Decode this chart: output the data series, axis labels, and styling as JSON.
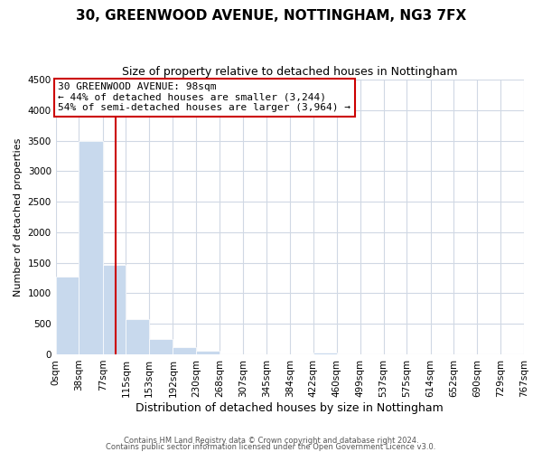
{
  "title": "30, GREENWOOD AVENUE, NOTTINGHAM, NG3 7FX",
  "subtitle": "Size of property relative to detached houses in Nottingham",
  "xlabel": "Distribution of detached houses by size in Nottingham",
  "ylabel": "Number of detached properties",
  "bar_color": "#c8d9ed",
  "bin_edges": [
    0,
    38,
    77,
    115,
    153,
    192,
    230,
    268,
    307,
    345,
    384,
    422,
    460,
    499,
    537,
    575,
    614,
    652,
    690,
    729,
    767
  ],
  "bin_labels": [
    "0sqm",
    "38sqm",
    "77sqm",
    "115sqm",
    "153sqm",
    "192sqm",
    "230sqm",
    "268sqm",
    "307sqm",
    "345sqm",
    "384sqm",
    "422sqm",
    "460sqm",
    "499sqm",
    "537sqm",
    "575sqm",
    "614sqm",
    "652sqm",
    "690sqm",
    "729sqm",
    "767sqm"
  ],
  "bar_heights": [
    1280,
    3500,
    1470,
    580,
    245,
    125,
    65,
    0,
    0,
    0,
    0,
    30,
    0,
    0,
    0,
    0,
    0,
    0,
    0,
    0
  ],
  "ylim": [
    0,
    4500
  ],
  "yticks": [
    0,
    500,
    1000,
    1500,
    2000,
    2500,
    3000,
    3500,
    4000,
    4500
  ],
  "vline_x": 98,
  "annotation_title": "30 GREENWOOD AVENUE: 98sqm",
  "annotation_line1": "← 44% of detached houses are smaller (3,244)",
  "annotation_line2": "54% of semi-detached houses are larger (3,964) →",
  "footer1": "Contains HM Land Registry data © Crown copyright and database right 2024.",
  "footer2": "Contains public sector information licensed under the Open Government Licence v3.0.",
  "background_color": "#ffffff",
  "grid_color": "#d0d8e4",
  "vline_color": "#cc0000",
  "title_fontsize": 11,
  "subtitle_fontsize": 9,
  "ylabel_fontsize": 8,
  "xlabel_fontsize": 9,
  "tick_fontsize": 7.5,
  "ann_fontsize": 8
}
